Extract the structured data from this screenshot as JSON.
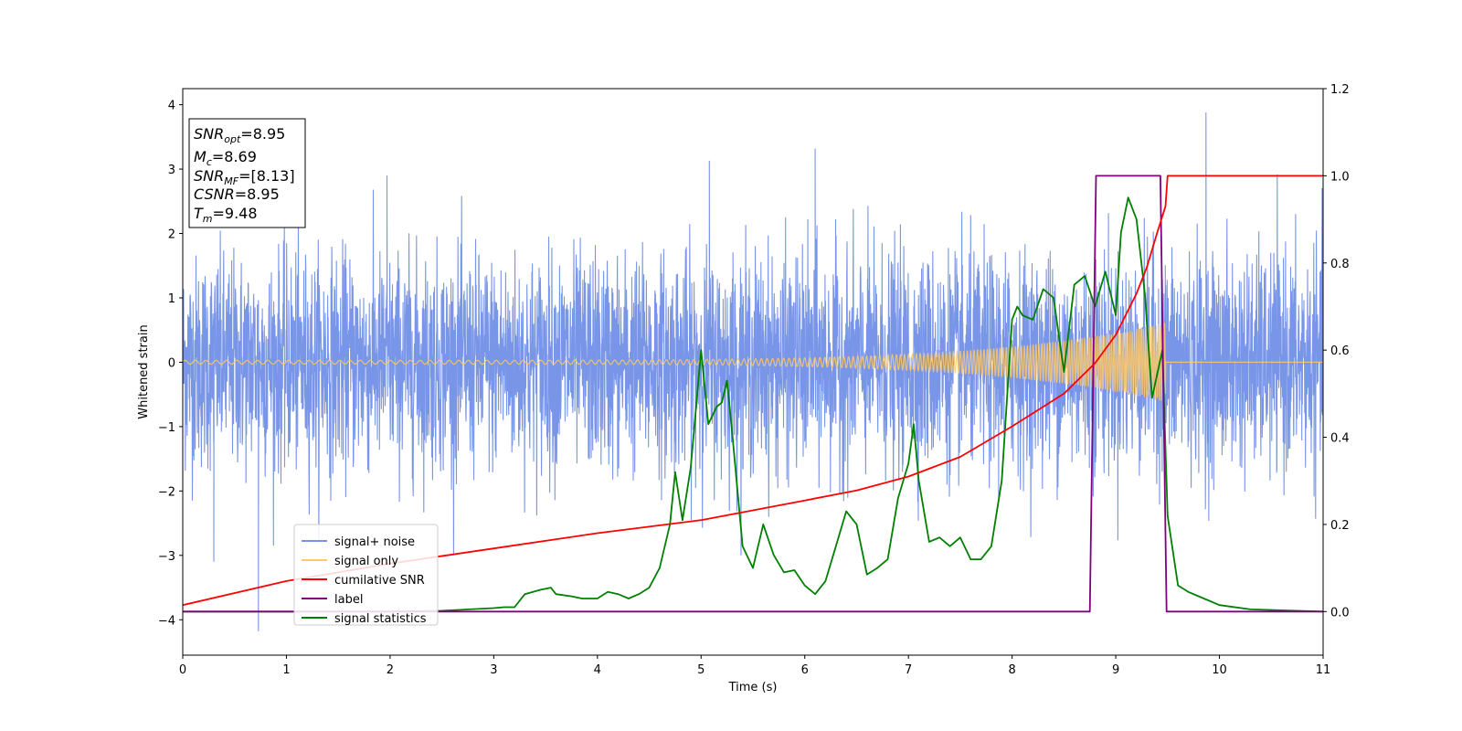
{
  "chart_data": {
    "type": "line",
    "title": "",
    "xlabel": "Time (s)",
    "ylabel": "Whitened strain",
    "y2label": "",
    "xlim": [
      0,
      11
    ],
    "ylim": [
      -4.55,
      4.25
    ],
    "y2lim": [
      -0.1,
      1.2
    ],
    "xticks": [
      "0",
      "1",
      "2",
      "3",
      "4",
      "5",
      "6",
      "7",
      "8",
      "9",
      "10",
      "11"
    ],
    "yticks": [
      "4",
      "3",
      "2",
      "1",
      "0",
      "−1",
      "−2",
      "−3",
      "−4"
    ],
    "y2ticks": [
      "1.2",
      "1.0",
      "0.8",
      "0.6",
      "0.4",
      "0.2",
      "0.0"
    ],
    "grid": false,
    "legend_position": "lower-left",
    "annotation": {
      "lines": [
        {
          "main": "SNR",
          "sub": "opt",
          "value": "=8.95"
        },
        {
          "main": "M",
          "sub": "c",
          "value": "=8.69"
        },
        {
          "main": "SNR",
          "sub": "MF",
          "value": "=[8.13]"
        },
        {
          "main": "CSNR",
          "sub": "",
          "value": "=8.95"
        },
        {
          "main": "T",
          "sub": "m",
          "value": "=9.48"
        }
      ]
    },
    "series": [
      {
        "name": "signal+ noise",
        "color": "#7895e8",
        "axis": "left",
        "kind": "noise",
        "typical_range": [
          -2.0,
          2.0
        ],
        "extremes": [
          {
            "x": 0.73,
            "y": -4.18
          },
          {
            "x": 9.87,
            "y": 3.88
          },
          {
            "x": 6.1,
            "y": 3.32
          },
          {
            "x": 5.08,
            "y": 3.13
          },
          {
            "x": 1.97,
            "y": 2.9
          },
          {
            "x": 0.3,
            "y": -3.1
          }
        ]
      },
      {
        "name": "signal only",
        "color": "#ffc966",
        "axis": "left",
        "kind": "chirp",
        "amplitude_start": 0.03,
        "amplitude_end": 0.62,
        "end_time": 9.48
      },
      {
        "name": "cumilative SNR",
        "color": "#ff0000",
        "axis": "right",
        "x": [
          0,
          1,
          2,
          3,
          4,
          5,
          6,
          6.5,
          7,
          7.5,
          8,
          8.5,
          8.8,
          9.0,
          9.2,
          9.3,
          9.4,
          9.48,
          9.5,
          11
        ],
        "y": [
          0.015,
          0.07,
          0.11,
          0.145,
          0.18,
          0.21,
          0.255,
          0.278,
          0.31,
          0.355,
          0.425,
          0.5,
          0.57,
          0.635,
          0.73,
          0.79,
          0.87,
          0.93,
          1.0,
          1.0
        ]
      },
      {
        "name": "label",
        "color": "#800080",
        "axis": "right",
        "x": [
          0,
          8.75,
          8.81,
          9.43,
          9.49,
          11
        ],
        "y": [
          0,
          0,
          1,
          1,
          0,
          0
        ]
      },
      {
        "name": "signal statistics",
        "color": "#008000",
        "axis": "right",
        "x": [
          0,
          0.5,
          1,
          1.5,
          2,
          2.5,
          3,
          3.1,
          3.2,
          3.3,
          3.45,
          3.55,
          3.6,
          3.75,
          3.85,
          4.0,
          4.1,
          4.2,
          4.3,
          4.4,
          4.5,
          4.6,
          4.7,
          4.75,
          4.82,
          4.9,
          5.0,
          5.07,
          5.15,
          5.2,
          5.25,
          5.3,
          5.4,
          5.5,
          5.6,
          5.7,
          5.8,
          5.9,
          6.0,
          6.1,
          6.2,
          6.3,
          6.4,
          6.5,
          6.6,
          6.7,
          6.8,
          6.9,
          6.95,
          7.0,
          7.05,
          7.1,
          7.2,
          7.3,
          7.4,
          7.5,
          7.6,
          7.7,
          7.8,
          7.9,
          8.0,
          8.05,
          8.1,
          8.2,
          8.3,
          8.4,
          8.5,
          8.6,
          8.7,
          8.8,
          8.9,
          9.0,
          9.05,
          9.12,
          9.2,
          9.28,
          9.35,
          9.45,
          9.5,
          9.6,
          9.7,
          9.85,
          10.0,
          10.3,
          11
        ],
        "y": [
          0.0,
          0.0,
          0.0,
          0.0,
          0.0,
          0.002,
          0.008,
          0.01,
          0.01,
          0.04,
          0.05,
          0.055,
          0.04,
          0.035,
          0.03,
          0.03,
          0.045,
          0.04,
          0.03,
          0.04,
          0.055,
          0.1,
          0.2,
          0.32,
          0.21,
          0.33,
          0.6,
          0.43,
          0.47,
          0.48,
          0.53,
          0.41,
          0.15,
          0.1,
          0.2,
          0.13,
          0.09,
          0.095,
          0.06,
          0.04,
          0.07,
          0.15,
          0.23,
          0.2,
          0.085,
          0.1,
          0.12,
          0.26,
          0.3,
          0.34,
          0.43,
          0.3,
          0.16,
          0.17,
          0.15,
          0.17,
          0.12,
          0.12,
          0.15,
          0.3,
          0.67,
          0.7,
          0.68,
          0.67,
          0.74,
          0.72,
          0.55,
          0.75,
          0.77,
          0.7,
          0.78,
          0.68,
          0.87,
          0.95,
          0.9,
          0.73,
          0.49,
          0.6,
          0.22,
          0.06,
          0.045,
          0.03,
          0.015,
          0.005,
          0.0
        ]
      }
    ]
  }
}
